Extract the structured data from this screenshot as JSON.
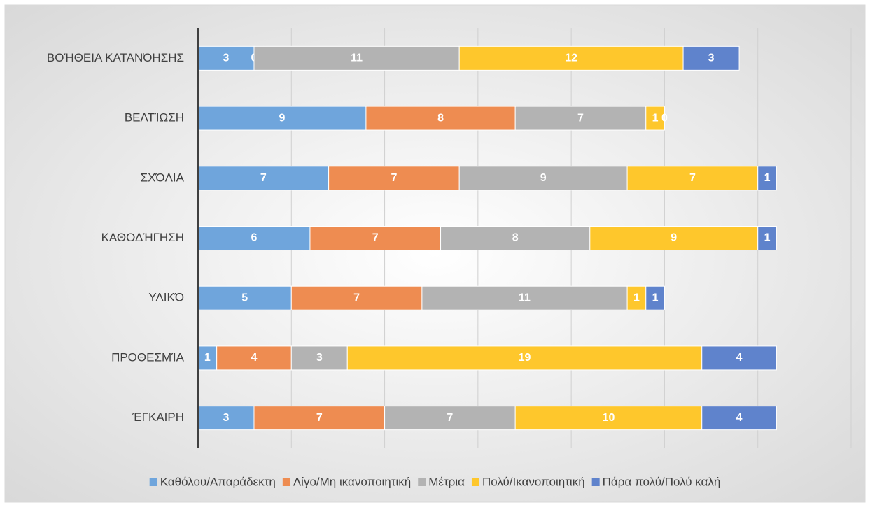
{
  "chart_data": {
    "type": "stacked_barh",
    "categories": [
      "ΒΟΉΘΕΙΑ ΚΑΤΑΝΌΗΣΗΣ",
      "ΒΕΛΤΊΩΣΗ",
      "ΣΧΌΛΙΑ",
      "ΚΑΘΟΔΉΓΗΣΗ",
      "ΥΛΙΚΌ",
      "ΠΡΟΘΕΣΜΊΑ",
      "ΈΓΚΑΙΡΗ"
    ],
    "series": [
      {
        "name": "Καθόλου/Απαράδεκτη",
        "color": "#6fa5dc",
        "values": [
          3,
          9,
          7,
          6,
          5,
          1,
          3
        ]
      },
      {
        "name": "Λίγο/Μη ικανοποιητική",
        "color": "#ee8c51",
        "values": [
          0,
          8,
          7,
          7,
          7,
          4,
          7
        ]
      },
      {
        "name": "Μέτρια",
        "color": "#b3b3b3",
        "values": [
          11,
          7,
          9,
          8,
          11,
          3,
          7
        ]
      },
      {
        "name": "Πολύ/Ικανοποιητική",
        "color": "#fec72c",
        "values": [
          12,
          1,
          7,
          9,
          1,
          19,
          10
        ]
      },
      {
        "name": "Πάρα πολύ/Πολύ καλή",
        "color": "#5f83cc",
        "values": [
          3,
          0,
          1,
          1,
          1,
          4,
          4
        ]
      }
    ],
    "xlim": [
      0,
      35
    ],
    "xticks": [
      0,
      5,
      10,
      15,
      20,
      25,
      30,
      35
    ],
    "grid": true,
    "legend": "bottom"
  }
}
